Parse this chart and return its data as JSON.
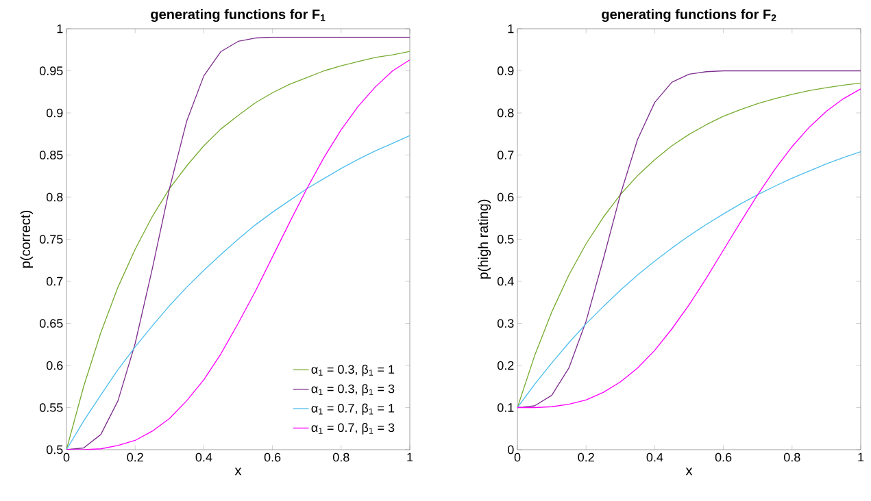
{
  "chart_data": [
    {
      "type": "line",
      "title": "generating functions for F$_{1}$",
      "xlabel": "x",
      "ylabel": "p(correct)",
      "x": [
        0,
        0.05,
        0.1,
        0.15,
        0.2,
        0.25,
        0.3,
        0.35,
        0.4,
        0.45,
        0.5,
        0.55,
        0.6,
        0.65,
        0.7,
        0.75,
        0.8,
        0.85,
        0.9,
        0.95,
        1
      ],
      "xlim": [
        0,
        1
      ],
      "xticks": [
        0,
        0.2,
        0.4,
        0.6,
        0.8,
        1
      ],
      "ylim": [
        0.5,
        1
      ],
      "yticks": [
        0.5,
        0.55,
        0.6,
        0.65,
        0.7,
        0.75,
        0.8,
        0.85,
        0.9,
        0.95,
        1
      ],
      "legend": "bottom right",
      "series": [
        {
          "name": "α$_{1}$ = 0.3, β$_{1}$ = 1",
          "color": "#77ac30",
          "values": [
            0.5,
            0.575,
            0.639,
            0.693,
            0.738,
            0.777,
            0.81,
            0.837,
            0.861,
            0.881,
            0.897,
            0.912,
            0.924,
            0.934,
            0.942,
            0.95,
            0.956,
            0.961,
            0.966,
            0.969,
            0.973
          ]
        },
        {
          "name": "α$_{1}$ = 0.3, β$_{1}$ = 3",
          "color": "#7e2f8e",
          "values": [
            0.5,
            0.502,
            0.518,
            0.558,
            0.626,
            0.715,
            0.81,
            0.89,
            0.944,
            0.973,
            0.985,
            0.989,
            0.99,
            0.99,
            0.99,
            0.99,
            0.99,
            0.99,
            0.99,
            0.99,
            0.99
          ]
        },
        {
          "name": "α$_{1}$ = 0.7, β$_{1}$ = 1",
          "color": "#4dbeee",
          "values": [
            0.5,
            0.534,
            0.565,
            0.595,
            0.622,
            0.647,
            0.671,
            0.693,
            0.713,
            0.732,
            0.75,
            0.767,
            0.782,
            0.796,
            0.81,
            0.822,
            0.834,
            0.845,
            0.855,
            0.864,
            0.873
          ]
        },
        {
          "name": "α$_{1}$ = 0.7, β$_{1}$ = 3",
          "color": "#ff00ff",
          "values": [
            0.5,
            0.5,
            0.501,
            0.505,
            0.511,
            0.522,
            0.537,
            0.558,
            0.583,
            0.614,
            0.65,
            0.688,
            0.729,
            0.77,
            0.81,
            0.847,
            0.88,
            0.908,
            0.931,
            0.95,
            0.963
          ]
        }
      ]
    },
    {
      "type": "line",
      "title": "generating functions for F$_{2}$",
      "xlabel": "x",
      "ylabel": "p(high rating)",
      "x": [
        0,
        0.05,
        0.1,
        0.15,
        0.2,
        0.25,
        0.3,
        0.35,
        0.4,
        0.45,
        0.5,
        0.55,
        0.6,
        0.65,
        0.7,
        0.75,
        0.8,
        0.85,
        0.9,
        0.95,
        1
      ],
      "xlim": [
        0,
        1
      ],
      "xticks": [
        0,
        0.2,
        0.4,
        0.6,
        0.8,
        1
      ],
      "ylim": [
        0,
        1
      ],
      "yticks": [
        0,
        0.1,
        0.2,
        0.3,
        0.4,
        0.5,
        0.6,
        0.7,
        0.8,
        0.9,
        1
      ],
      "series": [
        {
          "color": "#77ac30",
          "values": [
            0.1,
            0.223,
            0.327,
            0.415,
            0.489,
            0.552,
            0.606,
            0.651,
            0.689,
            0.722,
            0.749,
            0.772,
            0.792,
            0.808,
            0.822,
            0.834,
            0.844,
            0.853,
            0.86,
            0.866,
            0.871
          ]
        },
        {
          "color": "#7e2f8e",
          "values": [
            0.1,
            0.104,
            0.129,
            0.194,
            0.305,
            0.452,
            0.606,
            0.737,
            0.825,
            0.873,
            0.892,
            0.898,
            0.9,
            0.9,
            0.9,
            0.9,
            0.9,
            0.9,
            0.9,
            0.9,
            0.9
          ]
        },
        {
          "color": "#4dbeee",
          "values": [
            0.1,
            0.155,
            0.206,
            0.254,
            0.299,
            0.34,
            0.379,
            0.415,
            0.448,
            0.479,
            0.508,
            0.535,
            0.56,
            0.584,
            0.606,
            0.626,
            0.645,
            0.662,
            0.679,
            0.694,
            0.708
          ]
        },
        {
          "color": "#ff00ff",
          "values": [
            0.1,
            0.1,
            0.102,
            0.108,
            0.118,
            0.136,
            0.161,
            0.194,
            0.236,
            0.287,
            0.344,
            0.407,
            0.474,
            0.541,
            0.606,
            0.666,
            0.72,
            0.766,
            0.804,
            0.834,
            0.857
          ]
        }
      ]
    }
  ]
}
